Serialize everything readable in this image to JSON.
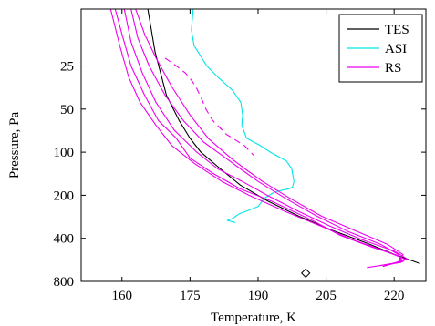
{
  "chart_data": {
    "type": "line",
    "title": "",
    "xlabel": "Temperature, K",
    "ylabel": "Pressure, Pa",
    "xlim": [
      151,
      227
    ],
    "ylim": [
      800,
      10
    ],
    "y_scale": "log",
    "x_ticks": [
      160,
      175,
      190,
      205,
      220
    ],
    "y_ticks": [
      25,
      50,
      100,
      200,
      400,
      800
    ],
    "grid": false,
    "legend": {
      "placement": "top-right",
      "entries": [
        "TES",
        "ASI",
        "RS"
      ]
    },
    "series": [
      {
        "name": "TES",
        "color": "#000000",
        "style": "solid",
        "points": [
          [
            165.7,
            10
          ],
          [
            167.3,
            20
          ],
          [
            169.8,
            40
          ],
          [
            172.6,
            60
          ],
          [
            175.0,
            80
          ],
          [
            177.4,
            100
          ],
          [
            181.6,
            130
          ],
          [
            186.1,
            170
          ],
          [
            192.2,
            220
          ],
          [
            199.0,
            280
          ],
          [
            206.2,
            350
          ],
          [
            213.8,
            430
          ],
          [
            220.2,
            520
          ],
          [
            225.7,
            600
          ]
        ]
      },
      {
        "name": "ASI",
        "color": "#00e5e5",
        "style": "solid",
        "points": [
          [
            175.7,
            10
          ],
          [
            175.3,
            14
          ],
          [
            175.9,
            18
          ],
          [
            178.7,
            25
          ],
          [
            181.2,
            30
          ],
          [
            184.4,
            37
          ],
          [
            186.2,
            45
          ],
          [
            186.6,
            55
          ],
          [
            186.4,
            65
          ],
          [
            187.5,
            80
          ],
          [
            190.5,
            90
          ],
          [
            192.7,
            100
          ],
          [
            196.2,
            115
          ],
          [
            197.4,
            130
          ],
          [
            197.9,
            160
          ],
          [
            197.6,
            175
          ],
          [
            196.8,
            180
          ],
          [
            193.6,
            190
          ],
          [
            191.4,
            210
          ],
          [
            190.0,
            240
          ],
          [
            188.6,
            250
          ],
          [
            185.8,
            270
          ],
          [
            184.4,
            290
          ],
          [
            183.2,
            300
          ],
          [
            185.0,
            310
          ]
        ]
      },
      {
        "name": "RS",
        "color": "#ee00ee",
        "style": "solid",
        "points": [
          [
            158.5,
            10
          ],
          [
            160.0,
            15
          ],
          [
            162.0,
            25
          ],
          [
            165.0,
            40
          ],
          [
            168.0,
            60
          ],
          [
            172.0,
            80
          ],
          [
            175.0,
            110
          ],
          [
            180.0,
            140
          ],
          [
            186.0,
            180
          ],
          [
            193.0,
            220
          ],
          [
            202.0,
            300
          ],
          [
            208.0,
            380
          ],
          [
            215.0,
            460
          ],
          [
            221.0,
            530
          ],
          [
            222.0,
            580
          ],
          [
            217.0,
            620
          ]
        ]
      },
      {
        "name": "",
        "color": "#ee00ee",
        "style": "solid",
        "points": [
          [
            157.5,
            10
          ],
          [
            159.5,
            18
          ],
          [
            161.5,
            30
          ],
          [
            164.0,
            45
          ],
          [
            167.5,
            65
          ],
          [
            171.0,
            90
          ],
          [
            176.0,
            120
          ],
          [
            182.0,
            160
          ],
          [
            188.0,
            200
          ],
          [
            196.0,
            260
          ],
          [
            204.0,
            330
          ],
          [
            211.0,
            410
          ],
          [
            218.0,
            490
          ],
          [
            222.5,
            560
          ],
          [
            219.0,
            610
          ]
        ]
      },
      {
        "name": "",
        "color": "#ee00ee",
        "style": "solid",
        "points": [
          [
            160.5,
            10
          ],
          [
            162.0,
            17
          ],
          [
            164.5,
            28
          ],
          [
            167.5,
            45
          ],
          [
            171.5,
            70
          ],
          [
            176.5,
            100
          ],
          [
            181.0,
            130
          ],
          [
            186.5,
            160
          ],
          [
            192.0,
            200
          ],
          [
            199.0,
            260
          ],
          [
            206.0,
            330
          ],
          [
            213.0,
            410
          ],
          [
            220.0,
            490
          ],
          [
            223.0,
            560
          ],
          [
            217.5,
            630
          ]
        ]
      },
      {
        "name": "",
        "color": "#ee00ee",
        "style": "solid",
        "points": [
          [
            162.0,
            10
          ],
          [
            163.5,
            16
          ],
          [
            166.0,
            25
          ],
          [
            169.5,
            40
          ],
          [
            173.5,
            60
          ],
          [
            178.0,
            85
          ],
          [
            182.0,
            105
          ],
          [
            186.0,
            130
          ],
          [
            190.0,
            160
          ],
          [
            196.0,
            210
          ],
          [
            203.0,
            280
          ],
          [
            210.0,
            360
          ],
          [
            217.0,
            440
          ],
          [
            221.0,
            520
          ],
          [
            221.5,
            590
          ],
          [
            214.0,
            640
          ]
        ]
      },
      {
        "name": "",
        "color": "#ee00ee",
        "style": "solid",
        "points": [
          [
            163.0,
            10
          ],
          [
            165.0,
            15
          ],
          [
            167.5,
            22
          ],
          [
            171.0,
            35
          ],
          [
            175.0,
            55
          ],
          [
            179.0,
            80
          ],
          [
            184.0,
            110
          ],
          [
            187.0,
            130
          ],
          [
            191.0,
            160
          ],
          [
            197.0,
            210
          ],
          [
            204.0,
            280
          ],
          [
            212.0,
            360
          ],
          [
            218.5,
            440
          ],
          [
            222.0,
            520
          ],
          [
            221.0,
            580
          ]
        ]
      },
      {
        "name": "",
        "color": "#ee00ee",
        "style": "dashed",
        "points": [
          [
            169.5,
            22
          ],
          [
            172.0,
            25
          ],
          [
            174.0,
            28
          ],
          [
            175.5,
            32
          ],
          [
            176.5,
            36
          ],
          [
            177.5,
            42
          ],
          [
            178.5,
            50
          ],
          [
            180.0,
            60
          ],
          [
            183.0,
            75
          ],
          [
            187.0,
            90
          ],
          [
            189.0,
            105
          ]
        ]
      }
    ],
    "annotations": [
      {
        "type": "marker",
        "shape": "diamond",
        "x": 200.5,
        "y": 700
      }
    ]
  }
}
